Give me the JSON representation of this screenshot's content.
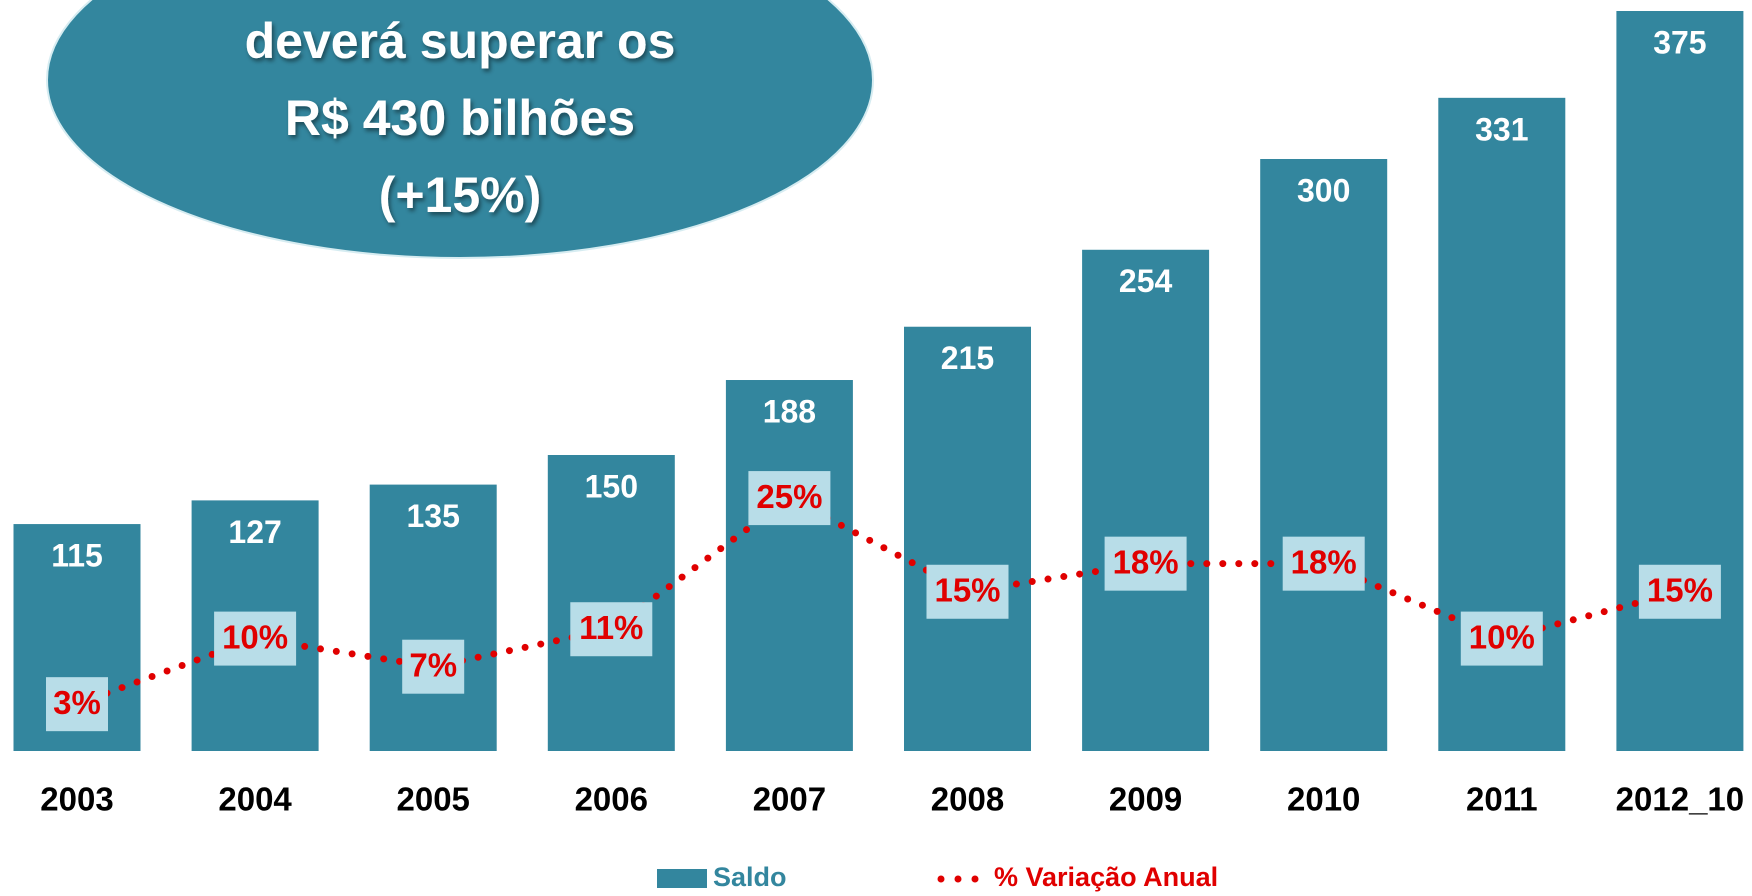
{
  "chart_data": {
    "type": "bar",
    "annotation": [
      "deverá superar os",
      "R$ 430 bilhões",
      "(+15%)"
    ],
    "categories": [
      "2003",
      "2004",
      "2005",
      "2006",
      "2007",
      "2008",
      "2009",
      "2010",
      "2011",
      "2012_10"
    ],
    "series": [
      {
        "name": "Saldo",
        "color": "#33869e",
        "values": [
          115,
          127,
          135,
          150,
          188,
          215,
          254,
          300,
          331,
          375
        ]
      },
      {
        "name": "% Variação Anual",
        "color": "#e00000",
        "axis": "y2",
        "values": [
          3,
          10,
          7,
          11,
          25,
          15,
          18,
          18,
          10,
          15
        ],
        "value_labels": [
          "3%",
          "10%",
          "7%",
          "11%",
          "25%",
          "15%",
          "18%",
          "18%",
          "10%",
          "15%"
        ]
      }
    ],
    "ylim": [
      0,
      375
    ],
    "y2lim": [
      -2,
      77
    ]
  }
}
